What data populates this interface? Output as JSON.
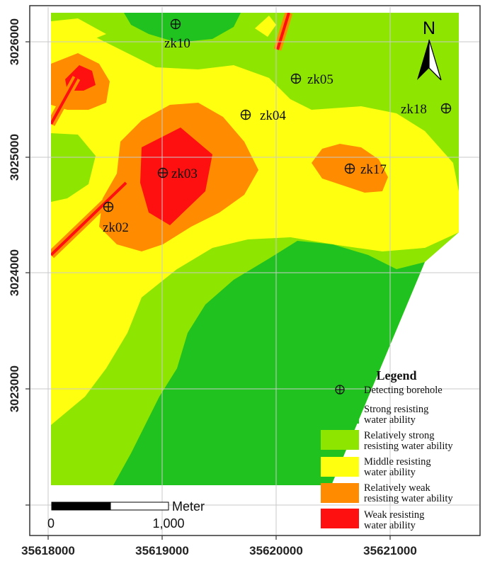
{
  "axes": {
    "x_ticks": [
      "35618000",
      "35619000",
      "35620000",
      "35621000"
    ],
    "y_ticks": [
      "3026000",
      "3025000",
      "3024000",
      "3023000"
    ]
  },
  "boreholes": [
    {
      "id": "zk10",
      "label": "zk10"
    },
    {
      "id": "zk05",
      "label": "zk05"
    },
    {
      "id": "zk18",
      "label": "zk18"
    },
    {
      "id": "zk04",
      "label": "zk04"
    },
    {
      "id": "zk03",
      "label": "zk03"
    },
    {
      "id": "zk17",
      "label": "zk17"
    },
    {
      "id": "zk02",
      "label": "zk02"
    }
  ],
  "north_arrow": {
    "label": "N"
  },
  "scale_bar": {
    "unit": "Meter",
    "start_label": "0",
    "end_label": "1,000"
  },
  "legend": {
    "title": "Legend",
    "borehole_label": "Detecting borehole",
    "items": [
      {
        "line1": "Strong resisting",
        "line2": "water ability",
        "color": "#1fc21f"
      },
      {
        "line1": "Relatively strong",
        "line2": "resisting water ability",
        "color": "#8ee600"
      },
      {
        "line1": "Middle resisting",
        "line2": "water ability",
        "color": "#ffff10"
      },
      {
        "line1": "Relatively weak",
        "line2": "resisting water ability",
        "color": "#ff8c00"
      },
      {
        "line1": "Weak resisting",
        "line2": "water ability",
        "color": "#ff1010"
      }
    ]
  },
  "colors": {
    "strong": "#1fc21f",
    "relatively_strong": "#8ee600",
    "middle": "#ffff10",
    "relatively_weak": "#ff8c00",
    "weak": "#ff1010",
    "grid": "#c8c8c8",
    "frame": "#333333"
  }
}
